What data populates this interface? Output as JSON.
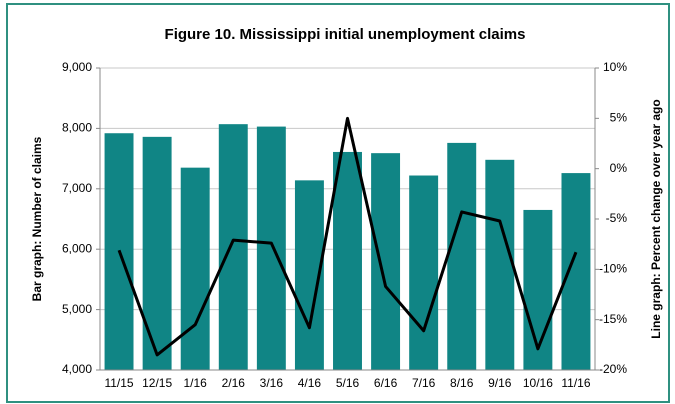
{
  "chart_data": {
    "type": "bar_line",
    "title": "Figure 10. Mississippi initial unemployment claims",
    "ylabel": "Bar graph: Number of claims",
    "y2label": "Line graph: Percent change over year ago",
    "categories": [
      "11/15",
      "12/15",
      "1/16",
      "2/16",
      "3/16",
      "4/16",
      "5/16",
      "6/16",
      "7/16",
      "8/16",
      "9/16",
      "10/16",
      "11/16"
    ],
    "series": [
      {
        "type": "bar",
        "color": "#108585",
        "values": [
          7920,
          7860,
          7350,
          8070,
          8030,
          7140,
          7610,
          7590,
          7220,
          7760,
          7480,
          6650,
          7260
        ]
      },
      {
        "type": "line",
        "axis": "y2",
        "color": "#000000",
        "values": [
          -8.1,
          -18.5,
          -15.5,
          -7.1,
          -7.4,
          -15.8,
          5.0,
          -11.7,
          -16.1,
          -4.3,
          -5.2,
          -17.9,
          -8.3
        ]
      }
    ],
    "ylim": [
      4000,
      9000
    ],
    "yticks": [
      {
        "value": 4000,
        "label": "4,000"
      },
      {
        "value": 5000,
        "label": "5,000"
      },
      {
        "value": 6000,
        "label": "6,000"
      },
      {
        "value": 7000,
        "label": "7,000"
      },
      {
        "value": 8000,
        "label": "8,000"
      },
      {
        "value": 9000,
        "label": "9,000"
      }
    ],
    "y2lim": [
      -20,
      10
    ],
    "y2ticks": [
      {
        "value": -20,
        "label": "-20%"
      },
      {
        "value": -15,
        "label": "-15%"
      },
      {
        "value": -10,
        "label": "-10%"
      },
      {
        "value": -5,
        "label": "-5%"
      },
      {
        "value": 0,
        "label": "0%"
      },
      {
        "value": 5,
        "label": "5%"
      },
      {
        "value": 10,
        "label": "10%"
      }
    ],
    "grid": true
  }
}
